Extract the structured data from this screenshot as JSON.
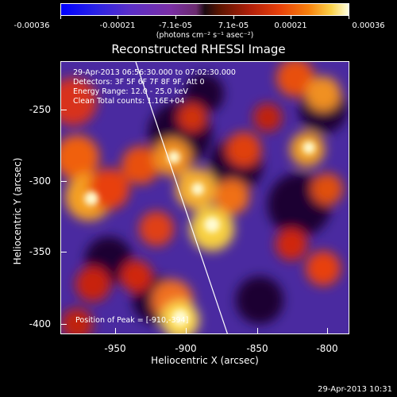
{
  "colorbar": {
    "labels": [
      "-0.00036",
      "-0.00021",
      "-7.1e-05",
      "7.1e-05",
      "0.00021",
      "0.00036"
    ],
    "unit": "(photons cm⁻² s⁻¹ asec⁻²)"
  },
  "plot": {
    "title": "Reconstructed RHESSI Image",
    "info_lines": [
      "29-Apr-2013 06:56:30.000 to 07:02:30.000",
      "Detectors: 3F 5F 6F 7F 8F 9F, Att 0",
      "Energy Range: 12.0 - 25.0 keV",
      "Clean    Total counts: 1.16E+04"
    ],
    "peak_label": "Position of Peak = [-910,-394]",
    "x_label": "Heliocentric X (arcsec)",
    "y_label": "Heliocentric Y (arcsec)",
    "x_ticks": [
      "-950",
      "-900",
      "-850",
      "-800"
    ],
    "y_ticks": [
      "-250",
      "-300",
      "-350",
      "-400"
    ]
  },
  "footer": {
    "timestamp": "29-Apr-2013 10:31"
  }
}
